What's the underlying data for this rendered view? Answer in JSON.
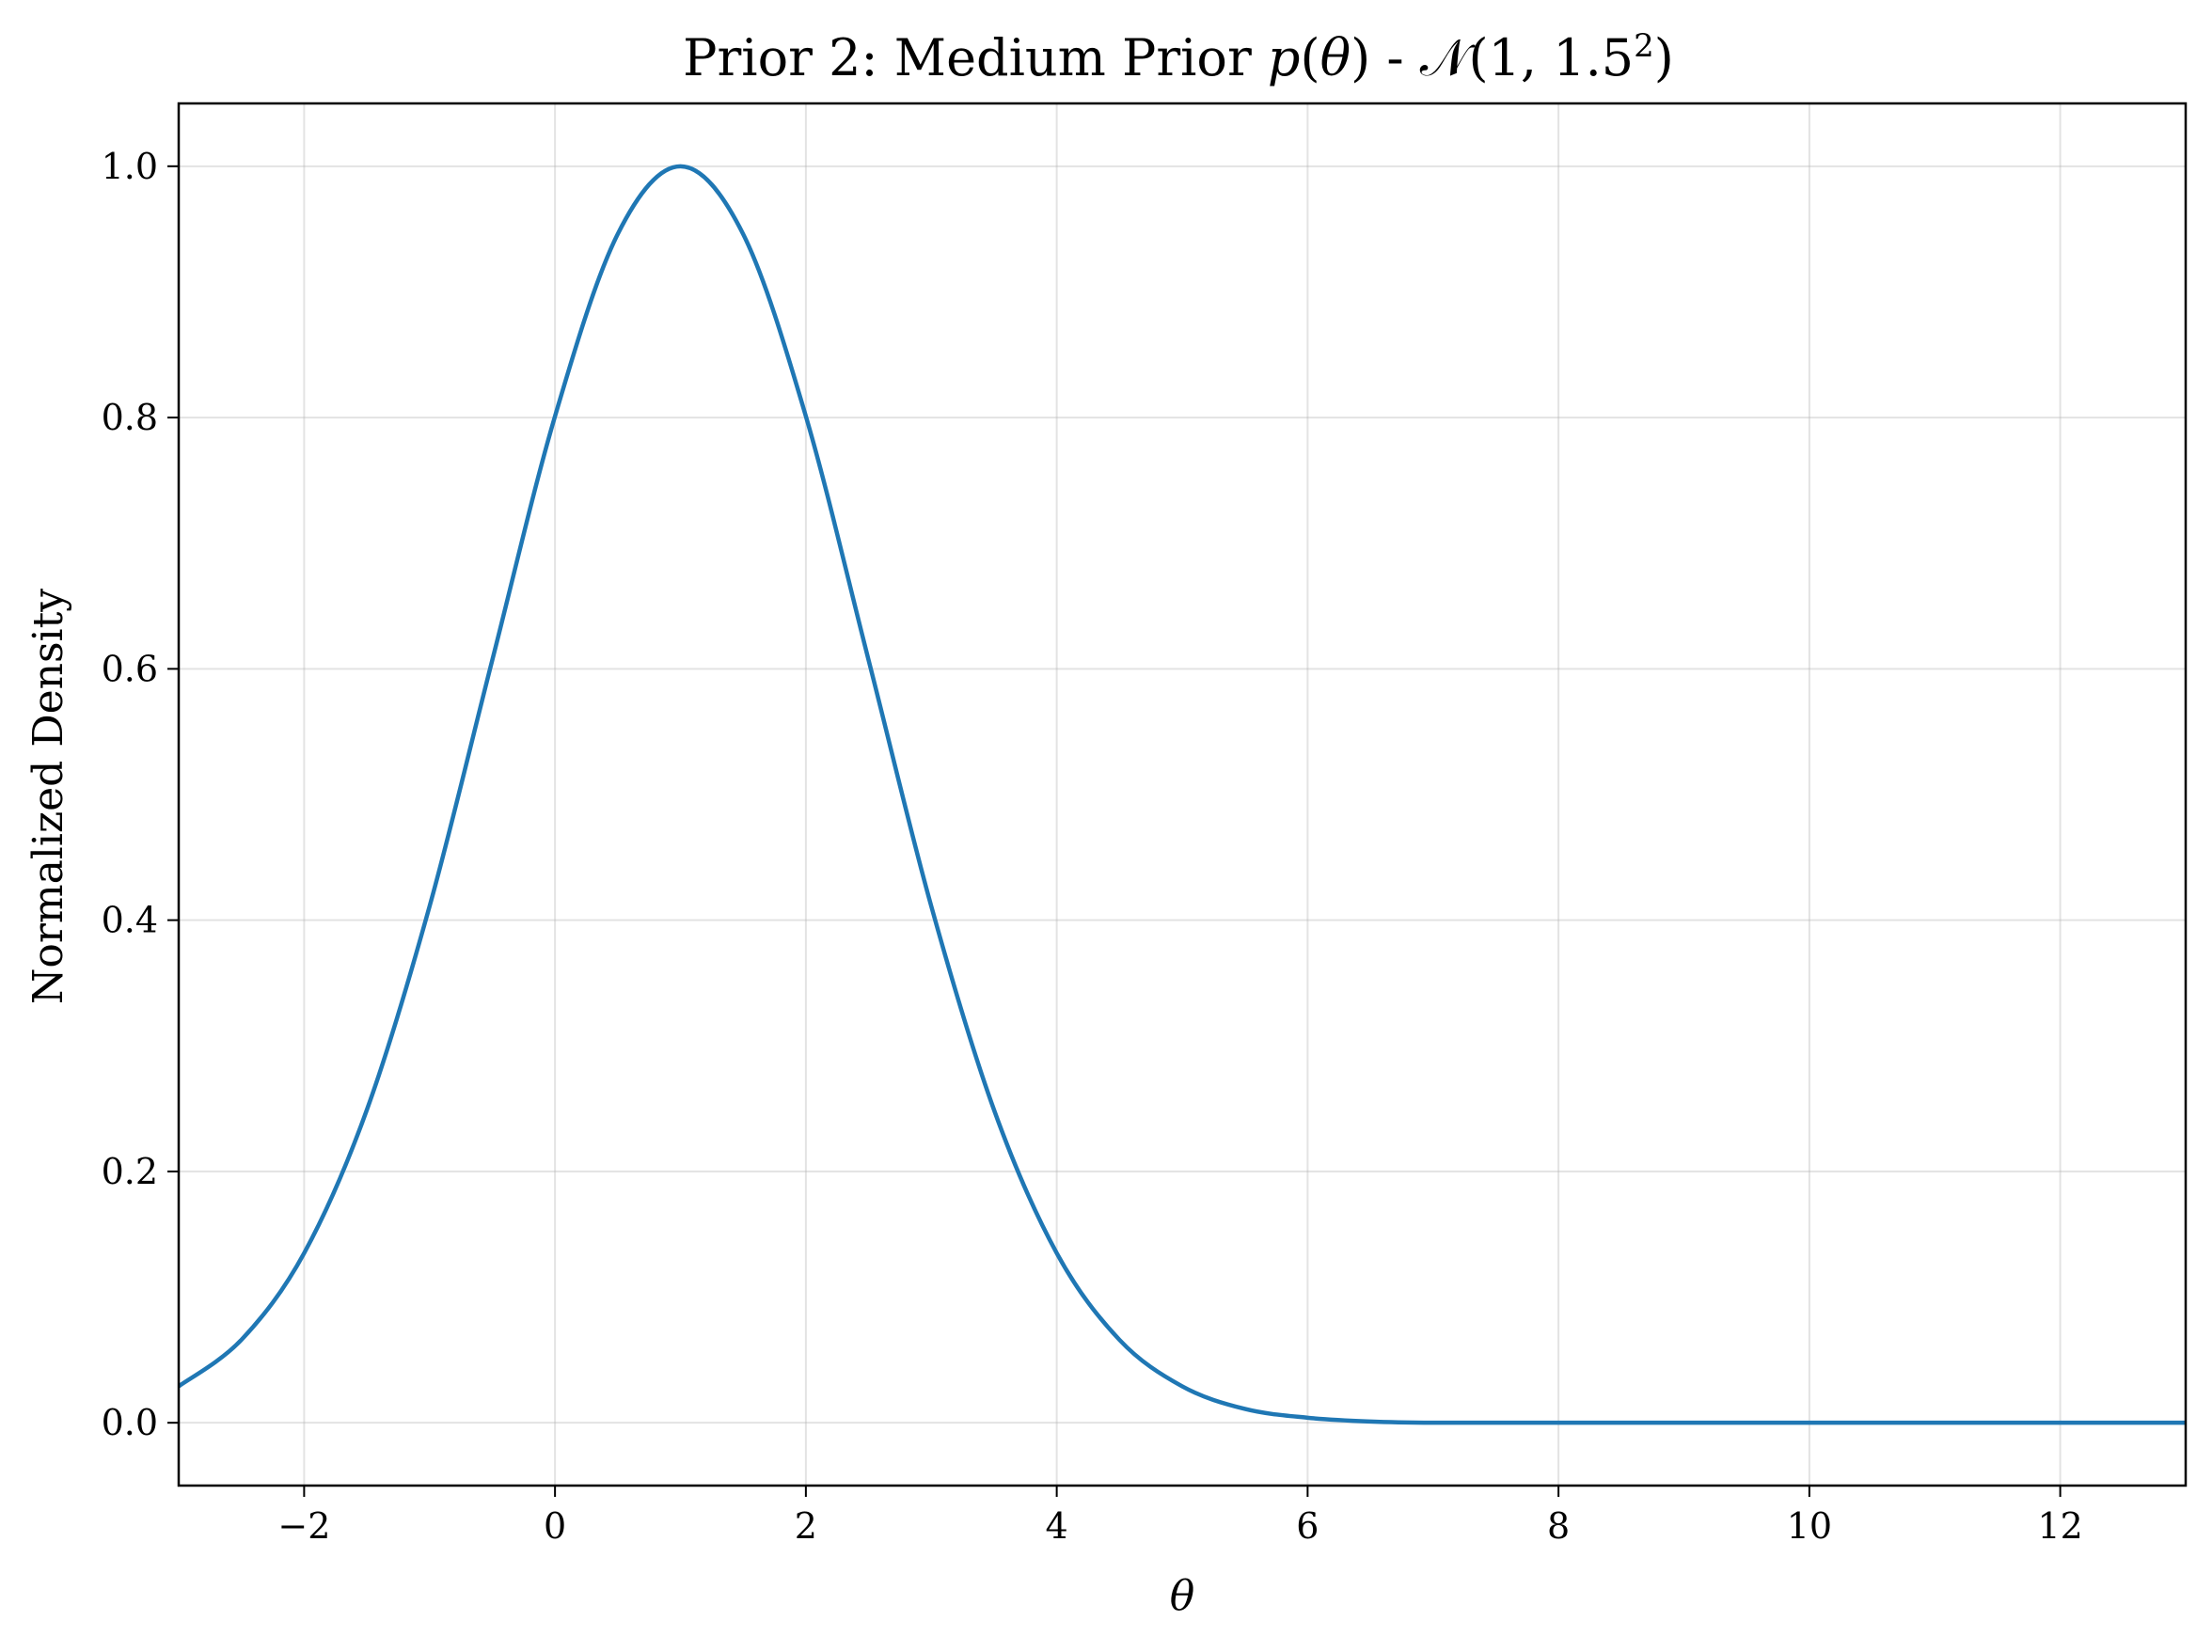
{
  "chart_data": {
    "type": "line",
    "title": {
      "prefix": "Prior 2: Medium Prior ",
      "p": "p",
      "paren_open": "(",
      "theta": "θ",
      "paren_close": ")",
      "dash": " - ",
      "N": "𝒩",
      "dist_args": "(1, 1.5",
      "exponent": "2",
      "dist_close": ")"
    },
    "xlabel": "θ",
    "ylabel": "Normalized Density",
    "xlim": [
      -3,
      13
    ],
    "ylim": [
      -0.05,
      1.05
    ],
    "xticks": [
      -2,
      0,
      2,
      4,
      6,
      8,
      10,
      12
    ],
    "xtick_labels": [
      "−2",
      "0",
      "2",
      "4",
      "6",
      "8",
      "10",
      "12"
    ],
    "yticks": [
      0.0,
      0.2,
      0.4,
      0.6,
      0.8,
      1.0
    ],
    "ytick_labels": [
      "0.0",
      "0.2",
      "0.4",
      "0.6",
      "0.8",
      "1.0"
    ],
    "grid": true,
    "series": [
      {
        "color": "#1f77b4",
        "x": [
          -3,
          -2.5,
          -2,
          -1.5,
          -1,
          -0.5,
          0,
          0.5,
          1,
          1.5,
          2,
          2.5,
          3,
          3.5,
          4,
          4.5,
          5,
          5.5,
          6,
          6.5,
          7,
          8,
          9,
          10,
          11,
          12,
          13
        ],
        "y": [
          0.029,
          0.066,
          0.135,
          0.249,
          0.411,
          0.607,
          0.801,
          0.946,
          1.0,
          0.946,
          0.801,
          0.607,
          0.411,
          0.249,
          0.135,
          0.066,
          0.029,
          0.011,
          0.004,
          0.001,
          0.0,
          0.0,
          0.0,
          0.0,
          0.0,
          0.0,
          0.0
        ]
      }
    ]
  }
}
